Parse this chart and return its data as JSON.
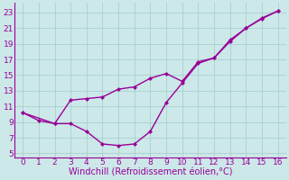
{
  "xlabel": "Windchill (Refroidissement éolien,°C)",
  "background_color": "#cce8e8",
  "grid_color": "#aacfcf",
  "line_color": "#990099",
  "xlim": [
    -0.5,
    16.5
  ],
  "ylim": [
    4.5,
    24.2
  ],
  "xticks": [
    0,
    1,
    2,
    3,
    4,
    5,
    6,
    7,
    8,
    9,
    10,
    11,
    12,
    13,
    14,
    15,
    16
  ],
  "yticks": [
    5,
    7,
    9,
    11,
    13,
    15,
    17,
    19,
    21,
    23
  ],
  "line1_x": [
    0,
    1,
    2,
    3,
    4,
    5,
    6,
    7,
    8,
    9,
    10,
    11,
    12,
    13,
    14,
    15,
    16
  ],
  "line1_y": [
    10.2,
    9.2,
    8.8,
    8.8,
    7.8,
    6.2,
    6.0,
    6.2,
    7.8,
    11.5,
    14.0,
    16.5,
    17.2,
    19.3,
    21.0,
    22.2,
    23.2
  ],
  "line2_x": [
    0,
    2,
    3,
    4,
    5,
    6,
    7,
    8,
    9,
    10,
    11,
    12,
    13,
    14,
    15,
    16
  ],
  "line2_y": [
    10.2,
    8.8,
    11.8,
    12.0,
    12.2,
    13.2,
    13.5,
    14.6,
    15.2,
    14.2,
    16.7,
    17.2,
    19.5,
    21.0,
    22.3,
    23.2
  ],
  "tick_fontsize": 6.5,
  "xlabel_fontsize": 7.0,
  "marker_size": 2.5,
  "line_width": 1.0
}
